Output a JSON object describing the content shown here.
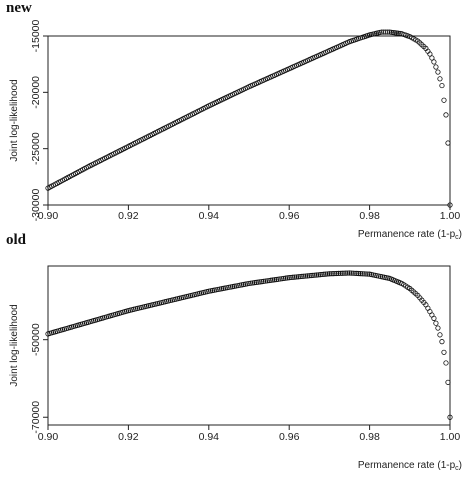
{
  "chart_data": [
    {
      "panel_label": "new",
      "type": "scatter",
      "marker": "open-circle",
      "xlabel": "Permanence rate (1-p",
      "xlabel_sub": "c",
      "xlabel_close": ")",
      "ylabel": "Joint log-likelihood",
      "xlim": [
        0.9,
        1.0
      ],
      "ylim": [
        -30000,
        -15000
      ],
      "x_ticks": [
        0.9,
        0.92,
        0.94,
        0.96,
        0.98,
        1.0
      ],
      "x_tick_labels": [
        "0.90",
        "0.92",
        "0.94",
        "0.96",
        "0.98",
        "1.00"
      ],
      "y_ticks": [
        -30000,
        -25000,
        -20000,
        -15000
      ],
      "y_tick_labels": [
        "-30000",
        "-25000",
        "-20000",
        "-15000"
      ],
      "x": [
        0.9,
        0.91,
        0.92,
        0.93,
        0.94,
        0.95,
        0.96,
        0.97,
        0.975,
        0.98,
        0.983,
        0.985,
        0.988,
        0.99,
        0.992,
        0.994,
        0.995,
        0.996,
        0.997,
        0.998,
        0.999,
        0.9995,
        1.0
      ],
      "y": [
        -28500,
        -26600,
        -24800,
        -23000,
        -21200,
        -19500,
        -17900,
        -16300,
        -15500,
        -14900,
        -14650,
        -14650,
        -14800,
        -15050,
        -15450,
        -16100,
        -16600,
        -17300,
        -18200,
        -19400,
        -22000,
        -24500,
        -30000
      ]
    },
    {
      "panel_label": "old",
      "type": "scatter",
      "marker": "open-circle",
      "xlabel": "Permanence rate (1-p",
      "xlabel_sub": "c",
      "xlabel_close": ")",
      "ylabel": "Joint log-likelihood",
      "xlim": [
        0.9,
        1.0
      ],
      "ylim": [
        -72000,
        -31000
      ],
      "x_ticks": [
        0.9,
        0.92,
        0.94,
        0.96,
        0.98,
        1.0
      ],
      "x_tick_labels": [
        "0.90",
        "0.92",
        "0.94",
        "0.96",
        "0.98",
        "1.00"
      ],
      "y_ticks": [
        -70000,
        -50000
      ],
      "y_tick_labels": [
        "-70000",
        "-50000"
      ],
      "x": [
        0.9,
        0.91,
        0.92,
        0.93,
        0.94,
        0.95,
        0.96,
        0.97,
        0.975,
        0.98,
        0.985,
        0.988,
        0.99,
        0.992,
        0.994,
        0.996,
        0.997,
        0.998,
        0.999,
        0.9995,
        1.0
      ],
      "y": [
        -48500,
        -45500,
        -42500,
        -40000,
        -37500,
        -35500,
        -34000,
        -33000,
        -32800,
        -33100,
        -34200,
        -35500,
        -36800,
        -38600,
        -41000,
        -44500,
        -47000,
        -50500,
        -56000,
        -61000,
        -70000
      ]
    }
  ]
}
